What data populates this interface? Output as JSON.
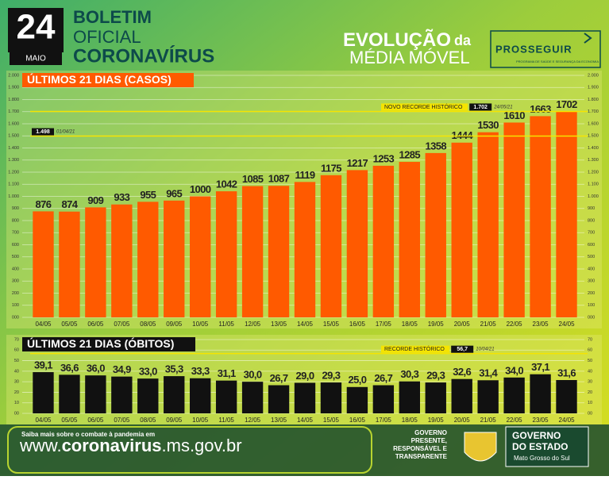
{
  "header": {
    "day": "24",
    "month": "MAIO",
    "line1": "BOLETIM",
    "line2": "OFICIAL",
    "line3": "CORONAVÍRUS",
    "headline_bold": "EVOLUÇÃO",
    "headline_small": "da",
    "headline2": "MÉDIA MÓVEL",
    "logo": "PROSSEGUIR",
    "logo_sub": "PROGRAMA DE SAÚDE E SEGURANÇA DA ECONOMIA"
  },
  "chart_data": [
    {
      "type": "bar",
      "title": "ÚLTIMOS 21 DIAS (CASOS)",
      "categories": [
        "04/05",
        "05/05",
        "06/05",
        "07/05",
        "08/05",
        "09/05",
        "10/05",
        "11/05",
        "12/05",
        "13/05",
        "14/05",
        "15/05",
        "16/05",
        "17/05",
        "18/05",
        "19/05",
        "20/05",
        "21/05",
        "22/05",
        "23/05",
        "24/05"
      ],
      "values": [
        876,
        874,
        909,
        933,
        955,
        965,
        1000,
        1042,
        1085,
        1087,
        1119,
        1175,
        1217,
        1253,
        1285,
        1358,
        1444,
        1530,
        1610,
        1663,
        1702
      ],
      "color": "#ff5a00",
      "ylim": [
        0,
        2000
      ],
      "yticks": [
        {
          "value": 0,
          "label": "000"
        },
        100,
        200,
        300,
        400,
        500,
        600,
        700,
        800,
        900,
        {
          "value": 1000,
          "label": "1.000"
        },
        {
          "value": 1100,
          "label": "1.100"
        },
        {
          "value": 1200,
          "label": "1.200"
        },
        {
          "value": 1300,
          "label": "1.300"
        },
        {
          "value": 1400,
          "label": "1.400"
        },
        {
          "value": 1500,
          "label": "1.500"
        },
        {
          "value": 1600,
          "label": "1.600"
        },
        {
          "value": 1700,
          "label": "1.700"
        },
        {
          "value": 1800,
          "label": "1.800"
        },
        {
          "value": 1900,
          "label": "1.900"
        },
        {
          "value": 2000,
          "label": "2.000"
        }
      ],
      "grid": true,
      "annotations": [
        {
          "text": "NOVO RECORDE HISTÓRICO",
          "value": 1702,
          "value_label": "1.702",
          "date": "24/05/21",
          "position": "right"
        },
        {
          "value": 1498,
          "value_label": "1.498",
          "date": "01/04/21",
          "position": "left"
        }
      ]
    },
    {
      "type": "bar",
      "title": "ÚLTIMOS 21 DIAS (ÓBITOS)",
      "categories": [
        "04/05",
        "05/05",
        "06/05",
        "07/05",
        "08/05",
        "09/05",
        "10/05",
        "11/05",
        "12/05",
        "13/05",
        "14/05",
        "15/05",
        "16/05",
        "17/05",
        "18/05",
        "19/05",
        "20/05",
        "21/05",
        "22/05",
        "23/05",
        "24/05"
      ],
      "values": [
        39.1,
        36.6,
        36.0,
        34.9,
        33.0,
        35.3,
        33.3,
        31.1,
        30.0,
        26.7,
        29.0,
        29.3,
        25.0,
        26.7,
        30.3,
        29.3,
        32.6,
        31.4,
        34.0,
        37.1,
        31.6
      ],
      "value_labels": [
        "39,1",
        "36,6",
        "36,0",
        "34,9",
        "33,0",
        "35,3",
        "33,3",
        "31,1",
        "30,0",
        "26,7",
        "29,0",
        "29,3",
        "25,0",
        "26,7",
        "30,3",
        "29,3",
        "32,6",
        "31,4",
        "34,0",
        "37,1",
        "31,6"
      ],
      "color": "#111111",
      "ylim": [
        0,
        70
      ],
      "yticks": [
        {
          "value": 0,
          "label": "00"
        },
        10,
        20,
        30,
        40,
        50,
        60,
        70
      ],
      "grid": true,
      "annotations": [
        {
          "text": "RECORDE HISTÓRICO",
          "value": 56.7,
          "value_label": "56,7",
          "date": "10/04/21",
          "position": "right"
        }
      ]
    }
  ],
  "footer": {
    "info": "Saiba mais sobre o combate à pandemia em",
    "url_a": "www.",
    "url_b": "coronavirus",
    "url_c": ".ms.gov.br",
    "slogan": [
      "GOVERNO",
      "PRESENTE,",
      "RESPONSÁVEL E",
      "TRANSPARENTE"
    ],
    "gov1": "GOVERNO",
    "gov2": "DO ESTADO",
    "state": "Mato Grosso do Sul"
  }
}
